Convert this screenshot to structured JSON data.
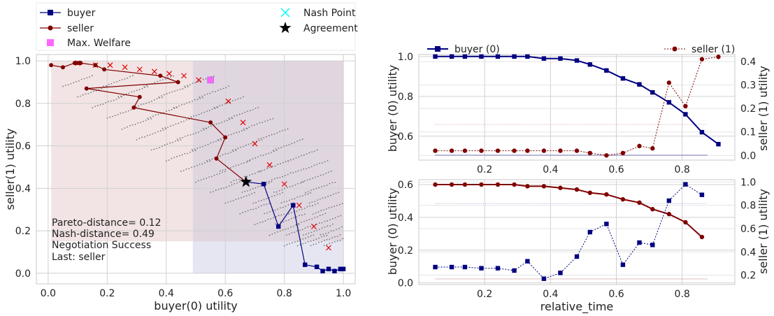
{
  "colors": {
    "buyer": "#000080",
    "seller": "#800000",
    "welfare": "#ff66ff",
    "nash": "#00ffff",
    "agreement": "#000000",
    "pareto_x": "#dd0000",
    "outcomes": "#777777",
    "region_seller": "#f2e4e4",
    "region_overlap": "#e0d6e0",
    "region_buyer": "#e6e6f2",
    "grid": "#d0d0d0"
  },
  "chart_data": [
    {
      "type": "scatter",
      "xlabel": "buyer(0) utility",
      "ylabel": "seller(1) utility",
      "xlim": [
        -0.04,
        1.04
      ],
      "ylim": [
        -0.05,
        1.03
      ],
      "xticks": [
        "0.0",
        "0.2",
        "0.4",
        "0.6",
        "0.8",
        "1.0"
      ],
      "yticks": [
        "0.0",
        "0.2",
        "0.4",
        "0.6",
        "0.8",
        "1.0"
      ],
      "legend": [
        {
          "label": "buyer",
          "marker": "square-line",
          "color": "#000080"
        },
        {
          "label": "seller",
          "marker": "circle-line",
          "color": "#800000"
        },
        {
          "label": "Max. Welfare",
          "marker": "square",
          "color": "#ff66ff"
        },
        {
          "label": "Nash Point",
          "marker": "x",
          "color": "#00ffff"
        },
        {
          "label": "Agreement",
          "marker": "star",
          "color": "#000000"
        }
      ],
      "legend_placement": "above",
      "annotation": [
        "Pareto-distance= 0.12",
        "Nash-distance= 0.49",
        "Negotiation Success",
        "Last: seller"
      ],
      "regions": [
        {
          "name": "seller-region",
          "x": [
            0.01,
            1.0
          ],
          "y": [
            0.15,
            1.0
          ]
        },
        {
          "name": "buyer-region",
          "x": [
            0.49,
            1.0
          ],
          "y": [
            0.0,
            1.0
          ]
        }
      ],
      "series": [
        {
          "name": "buyer",
          "points": [
            [
              1.0,
              0.02
            ],
            [
              0.99,
              0.02
            ],
            [
              0.97,
              0.01
            ],
            [
              0.95,
              0.02
            ],
            [
              0.93,
              0.01
            ],
            [
              0.91,
              0.03
            ],
            [
              0.87,
              0.04
            ],
            [
              0.83,
              0.32
            ],
            [
              0.78,
              0.22
            ],
            [
              0.73,
              0.42
            ],
            [
              0.67,
              0.43
            ]
          ]
        },
        {
          "name": "seller",
          "points": [
            [
              0.01,
              0.98
            ],
            [
              0.05,
              0.97
            ],
            [
              0.09,
              0.99
            ],
            [
              0.1,
              0.99
            ],
            [
              0.11,
              0.99
            ],
            [
              0.16,
              0.98
            ],
            [
              0.19,
              0.96
            ],
            [
              0.38,
              0.93
            ],
            [
              0.44,
              0.9
            ],
            [
              0.13,
              0.87
            ],
            [
              0.31,
              0.83
            ],
            [
              0.29,
              0.78
            ],
            [
              0.55,
              0.71
            ],
            [
              0.6,
              0.64
            ],
            [
              0.57,
              0.54
            ],
            [
              0.67,
              0.43
            ]
          ]
        }
      ],
      "max_welfare": [
        [
          0.55,
          0.91
        ]
      ],
      "agreement": [
        0.67,
        0.43
      ],
      "pareto_frontier": [
        [
          0.1,
          0.99
        ],
        [
          0.16,
          0.98
        ],
        [
          0.21,
          0.98
        ],
        [
          0.26,
          0.97
        ],
        [
          0.31,
          0.96
        ],
        [
          0.36,
          0.95
        ],
        [
          0.41,
          0.94
        ],
        [
          0.46,
          0.93
        ],
        [
          0.51,
          0.91
        ],
        [
          0.61,
          0.81
        ],
        [
          0.66,
          0.71
        ],
        [
          0.7,
          0.61
        ],
        [
          0.75,
          0.51
        ],
        [
          0.8,
          0.42
        ],
        [
          0.85,
          0.32
        ],
        [
          0.9,
          0.22
        ],
        [
          0.95,
          0.12
        ]
      ]
    },
    {
      "type": "line",
      "xlabel": "",
      "ylabel": "buyer (0) utility",
      "ylabel_right": "seller (1) utility",
      "xlim": [
        0.0,
        0.96
      ],
      "ylim": [
        0.48,
        1.01
      ],
      "ylim_right": [
        -0.02,
        0.43
      ],
      "xticks": [
        "0.2",
        "0.4",
        "0.6",
        "0.8"
      ],
      "yticks": [
        "0.6",
        "0.8",
        "1.0"
      ],
      "yticks_right": [
        "0.0",
        "0.1",
        "0.2",
        "0.3",
        "0.4"
      ],
      "legend": [
        {
          "label": "buyer (0)",
          "marker": "square-line",
          "color": "#000080",
          "placement": "top-left"
        },
        {
          "label": "seller (1)",
          "marker": "circle-dotted",
          "color": "#800000",
          "placement": "top-right"
        }
      ],
      "x": [
        0.05,
        0.1,
        0.14,
        0.19,
        0.24,
        0.29,
        0.33,
        0.38,
        0.43,
        0.48,
        0.52,
        0.57,
        0.62,
        0.67,
        0.71,
        0.76,
        0.81,
        0.86,
        0.91
      ],
      "series": [
        {
          "name": "buyer (0)",
          "axis": "left",
          "values": [
            1.0,
            1.0,
            1.0,
            1.0,
            1.0,
            1.0,
            1.0,
            0.99,
            0.99,
            0.98,
            0.96,
            0.93,
            0.89,
            0.86,
            0.82,
            0.77,
            0.71,
            0.62,
            0.56
          ]
        },
        {
          "name": "seller (1)",
          "axis": "right",
          "values": [
            0.02,
            0.02,
            0.02,
            0.02,
            0.02,
            0.02,
            0.02,
            0.02,
            0.02,
            0.02,
            0.01,
            0.0,
            0.01,
            0.04,
            0.03,
            0.31,
            0.21,
            0.41,
            0.42
          ]
        }
      ]
    },
    {
      "type": "line",
      "xlabel": "relative_time",
      "ylabel": "buyer (0) utility",
      "ylabel_right": "seller (1) utility",
      "xlim": [
        0.0,
        0.96
      ],
      "ylim": [
        -0.01,
        0.63
      ],
      "ylim_right": [
        0.12,
        1.02
      ],
      "xticks": [
        "0.2",
        "0.4",
        "0.6",
        "0.8"
      ],
      "yticks": [
        "0.0",
        "0.2",
        "0.4",
        "0.6"
      ],
      "yticks_right": [
        "0.2",
        "0.4",
        "0.6",
        "0.8",
        "1.0"
      ],
      "x": [
        0.05,
        0.1,
        0.14,
        0.19,
        0.24,
        0.29,
        0.33,
        0.38,
        0.43,
        0.48,
        0.52,
        0.57,
        0.62,
        0.67,
        0.71,
        0.76,
        0.81,
        0.86
      ],
      "series": [
        {
          "name": "seller (1)",
          "axis": "left",
          "values": [
            0.6,
            0.6,
            0.6,
            0.6,
            0.6,
            0.6,
            0.59,
            0.59,
            0.58,
            0.57,
            0.55,
            0.54,
            0.51,
            0.49,
            0.45,
            0.42,
            0.37,
            0.28
          ]
        },
        {
          "name": "buyer (0)",
          "axis": "right",
          "values": [
            0.27,
            0.27,
            0.27,
            0.26,
            0.26,
            0.24,
            0.32,
            0.17,
            0.22,
            0.36,
            0.57,
            0.64,
            0.29,
            0.48,
            0.46,
            0.84,
            0.98,
            0.89
          ]
        }
      ]
    }
  ]
}
